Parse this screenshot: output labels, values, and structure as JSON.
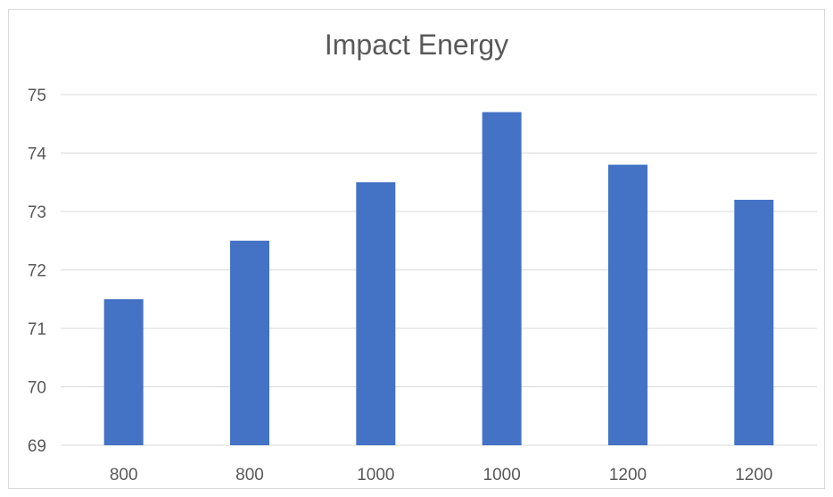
{
  "chart_data": {
    "type": "bar",
    "title": "Impact Energy",
    "categories": [
      "800",
      "800",
      "1000",
      "1000",
      "1200",
      "1200"
    ],
    "series": [
      {
        "values": [
          71.5,
          72.5,
          73.5,
          74.7,
          73.8,
          73.2
        ]
      }
    ],
    "xlabel": "",
    "ylabel": "",
    "ylim": [
      69,
      75
    ],
    "yticks": [
      69,
      70,
      71,
      72,
      73,
      74,
      75
    ],
    "grid": true,
    "legend": "none",
    "colors": {
      "bar": "#4472C4",
      "grid": "#d9d9d9",
      "text": "#595959"
    }
  }
}
